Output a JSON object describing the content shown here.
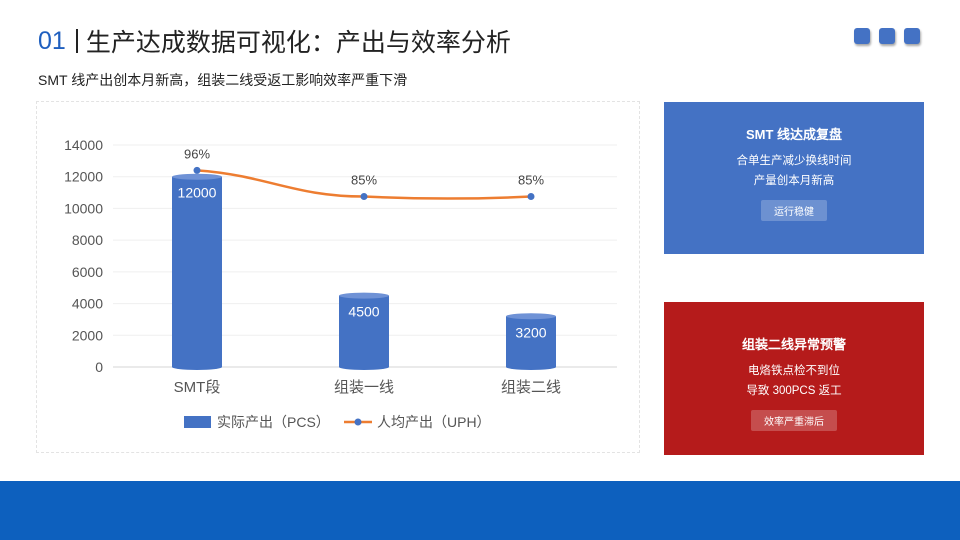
{
  "header": {
    "number": "01",
    "title": "生产达成数据可视化：产出与效率分析",
    "subtitle": "SMT 线产出创本月新高，组装二线受返工影响效率严重下滑"
  },
  "colors": {
    "accent": "#1f5fbf",
    "bar": "#4472c4",
    "line": "#ed7d31",
    "card_blue": "#4472c4",
    "card_red": "#b51b1b",
    "footer": "#0d60be"
  },
  "cards": [
    {
      "title": "SMT 线达成复盘",
      "lines": [
        "合单生产减少换线时间",
        "产量创本月新高"
      ],
      "button": "运行稳健"
    },
    {
      "title": "组装二线异常预警",
      "lines": [
        "电烙铁点检不到位",
        "导致 300PCS 返工"
      ],
      "button": "效率严重滞后"
    }
  ],
  "chart_data": {
    "type": "bar",
    "categories": [
      "SMT段",
      "组装一线",
      "组装二线"
    ],
    "series": [
      {
        "name": "实际产出（PCS）",
        "type": "bar",
        "values": [
          12000,
          4500,
          3200
        ],
        "data_labels": [
          "12000",
          "4500",
          "3200"
        ]
      },
      {
        "name": "人均产出（UPH）",
        "type": "line",
        "values": [
          96,
          85,
          85
        ],
        "data_labels": [
          "96%",
          "85%",
          "85%"
        ]
      }
    ],
    "y_ticks": [
      "0",
      "2000",
      "4000",
      "6000",
      "8000",
      "10000",
      "12000",
      "14000"
    ],
    "ylim": [
      0,
      14000
    ],
    "legend_position": "bottom",
    "grid": true
  }
}
